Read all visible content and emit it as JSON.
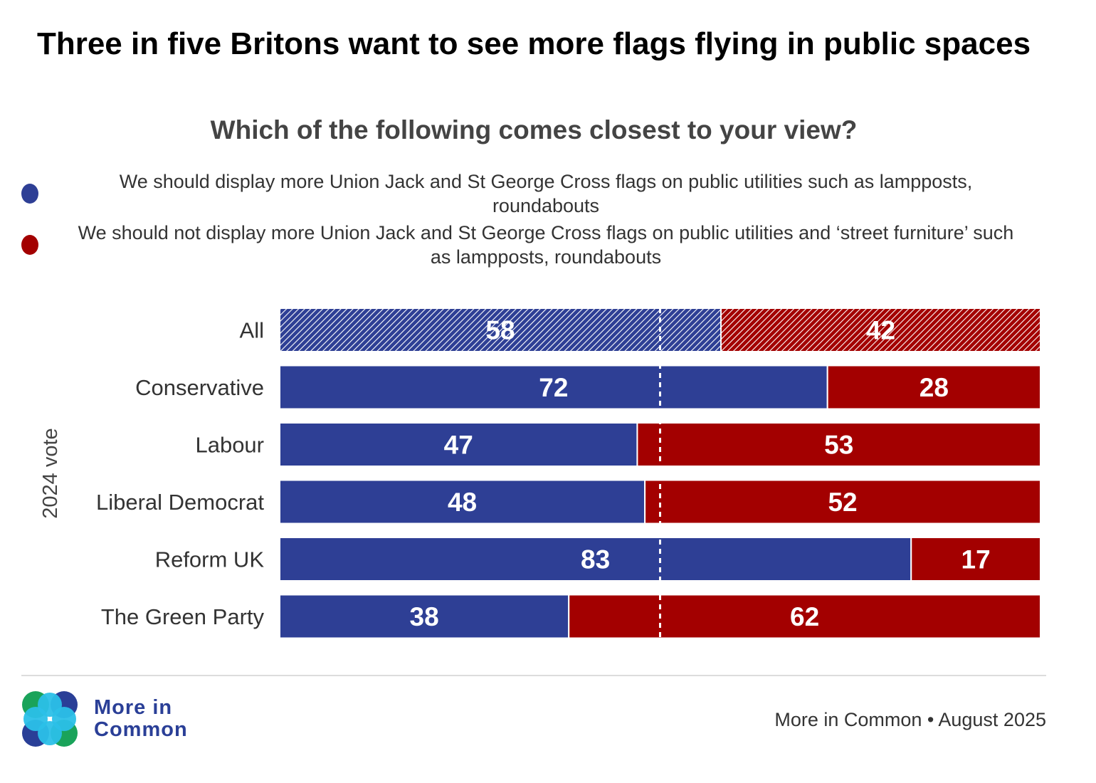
{
  "header": {
    "title": "Three in five Britons want to see more flags flying in public spaces",
    "subtitle": "Which of the following comes closest to your view?"
  },
  "legend": [
    {
      "label": "We should display more Union Jack and St George Cross flags on public utilities such as lampposts, roundabouts",
      "color": "#2e3f95"
    },
    {
      "label": "We should not display more Union Jack and St George Cross flags on public utilities and ‘street furniture’ such as lampposts, roundabouts",
      "color": "#a30000"
    }
  ],
  "chart_data": {
    "type": "bar",
    "orientation": "horizontal",
    "stacked": true,
    "ylabel": "2024 vote",
    "categories": [
      "All",
      "Conservative",
      "Labour",
      "Liberal Democrat",
      "Reform UK",
      "The Green Party"
    ],
    "series": [
      {
        "values": [
          58,
          72,
          47,
          48,
          83,
          38
        ],
        "color": "#2e3f95"
      },
      {
        "values": [
          42,
          28,
          53,
          52,
          17,
          62
        ],
        "color": "#a30000"
      }
    ],
    "xlim": [
      0,
      100
    ],
    "reference_line": 50,
    "hatched_categories": [
      "All"
    ]
  },
  "footer": {
    "logo_text_line1": "More in",
    "logo_text_line2": "Common",
    "source": "More in Common • August 2025"
  }
}
